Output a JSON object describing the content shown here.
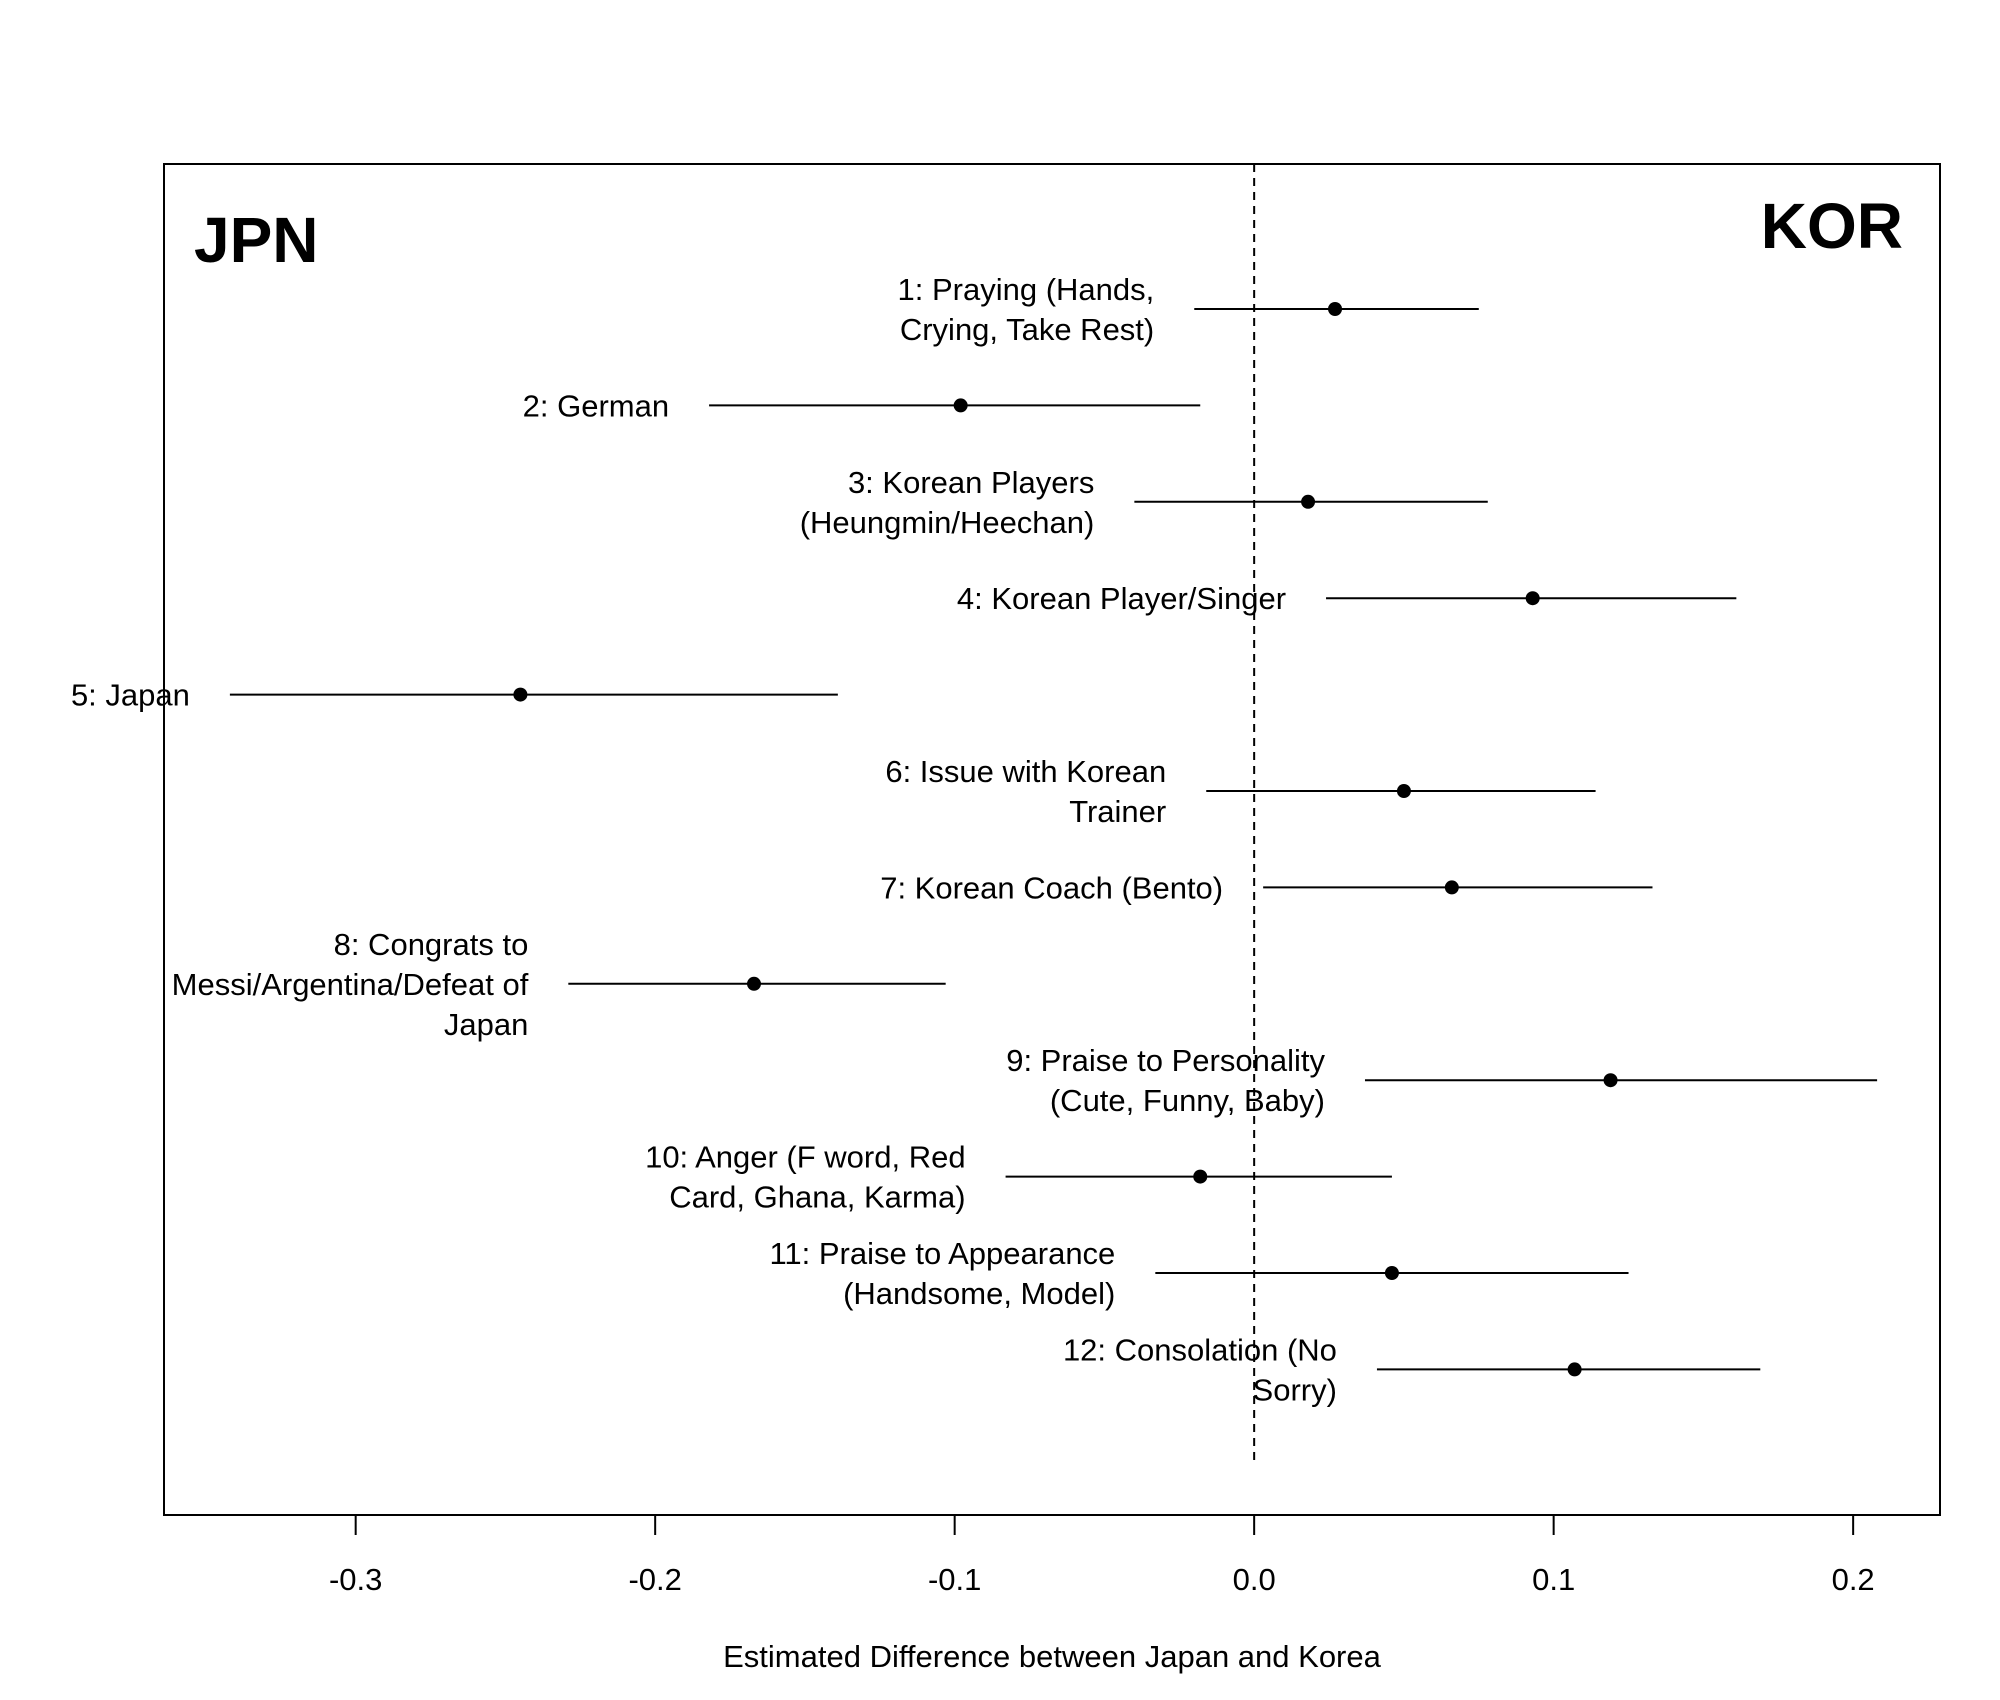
{
  "chart_data": {
    "type": "scatter",
    "xlabel": "Estimated Difference between Japan and Korea",
    "xlim": [
      -0.364,
      0.229
    ],
    "x_ticks": [
      -0.3,
      -0.2,
      -0.1,
      0.0,
      0.1,
      0.2
    ],
    "x_tick_labels": [
      "-0.3",
      "-0.2",
      "-0.1",
      "0.0",
      "0.1",
      "0.2"
    ],
    "reference_line": 0.0,
    "left_label": "JPN",
    "right_label": "KOR",
    "grid": false,
    "points": [
      {
        "label_lines": [
          "1: Praying (Hands,",
          "Crying, Take Rest)"
        ],
        "estimate": 0.027,
        "ci_low": -0.02,
        "ci_high": 0.075
      },
      {
        "label_lines": [
          "2: German"
        ],
        "estimate": -0.098,
        "ci_low": -0.182,
        "ci_high": -0.018
      },
      {
        "label_lines": [
          "3: Korean Players",
          "(Heungmin/Heechan)"
        ],
        "estimate": 0.018,
        "ci_low": -0.04,
        "ci_high": 0.078
      },
      {
        "label_lines": [
          "4: Korean Player/Singer"
        ],
        "estimate": 0.093,
        "ci_low": 0.024,
        "ci_high": 0.161
      },
      {
        "label_lines": [
          "5: Japan"
        ],
        "estimate": -0.245,
        "ci_low": -0.342,
        "ci_high": -0.139
      },
      {
        "label_lines": [
          "6: Issue with Korean",
          "Trainer"
        ],
        "estimate": 0.05,
        "ci_low": -0.016,
        "ci_high": 0.114
      },
      {
        "label_lines": [
          "7: Korean Coach (Bento)"
        ],
        "estimate": 0.066,
        "ci_low": 0.003,
        "ci_high": 0.133
      },
      {
        "label_lines": [
          "8: Congrats to",
          "Messi/Argentina/Defeat of",
          "Japan"
        ],
        "estimate": -0.167,
        "ci_low": -0.229,
        "ci_high": -0.103
      },
      {
        "label_lines": [
          "9: Praise to Personality",
          "(Cute, Funny, Baby)"
        ],
        "estimate": 0.119,
        "ci_low": 0.037,
        "ci_high": 0.208
      },
      {
        "label_lines": [
          "10: Anger (F word, Red",
          "Card, Ghana, Karma)"
        ],
        "estimate": -0.018,
        "ci_low": -0.083,
        "ci_high": 0.046
      },
      {
        "label_lines": [
          "11: Praise to Appearance",
          "(Handsome, Model)"
        ],
        "estimate": 0.046,
        "ci_low": -0.033,
        "ci_high": 0.125
      },
      {
        "label_lines": [
          "12: Consolation (No",
          "Sorry)"
        ],
        "estimate": 0.107,
        "ci_low": 0.041,
        "ci_high": 0.169
      }
    ],
    "colors": {
      "point": "#000000",
      "line": "#000000",
      "axis": "#000000"
    }
  }
}
